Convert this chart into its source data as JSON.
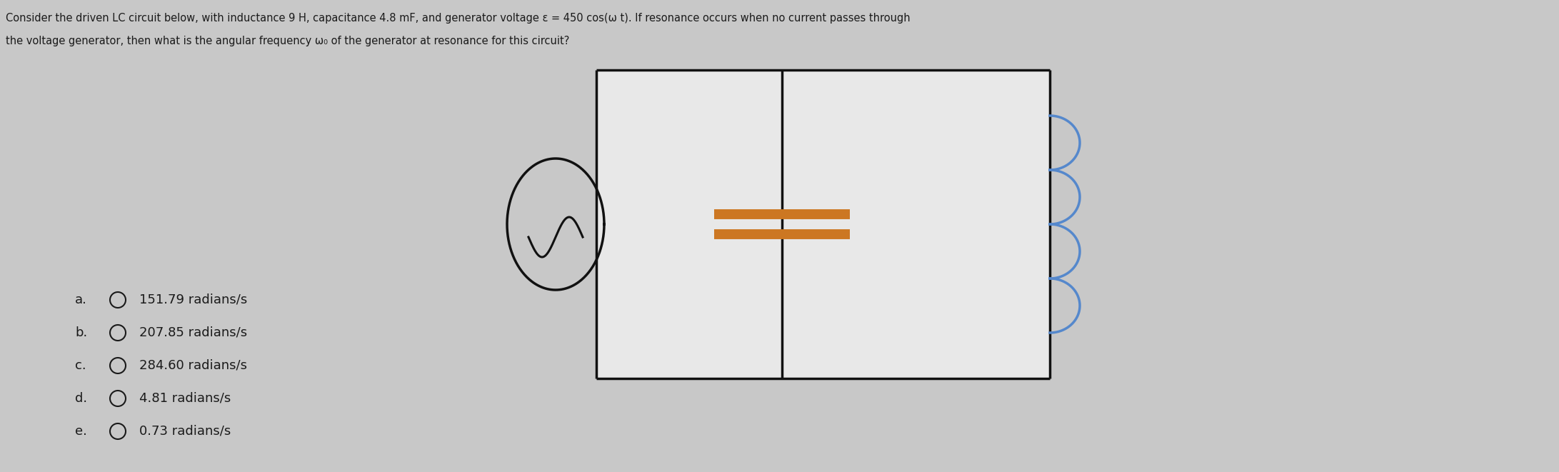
{
  "background_color": "#c8c8c8",
  "box_fill": "#e8e8e8",
  "question_line1": "Consider the driven LC circuit below, with inductance 9 H, capacitance 4.8 mF, and generator voltage ε = 450 cos(ω t). If resonance occurs when no current passes through",
  "question_line2": "the voltage generator, then what is the angular frequency ω₀ of the generator at resonance for this circuit?",
  "choices": [
    [
      "a.",
      "151.79 radians/s"
    ],
    [
      "b.",
      "207.85 radians/s"
    ],
    [
      "c.",
      "284.60 radians/s"
    ],
    [
      "d.",
      "4.81 radians/s"
    ],
    [
      "e.",
      "0.73 radians/s"
    ]
  ],
  "text_color": "#1a1a1a",
  "circuit_lw": 2.5,
  "circuit_color": "#111111",
  "cap_color": "#cc7722",
  "ind_color": "#5588cc",
  "gen_color": "#111111",
  "text_fontsize": 10.5,
  "choices_fontsize": 13
}
